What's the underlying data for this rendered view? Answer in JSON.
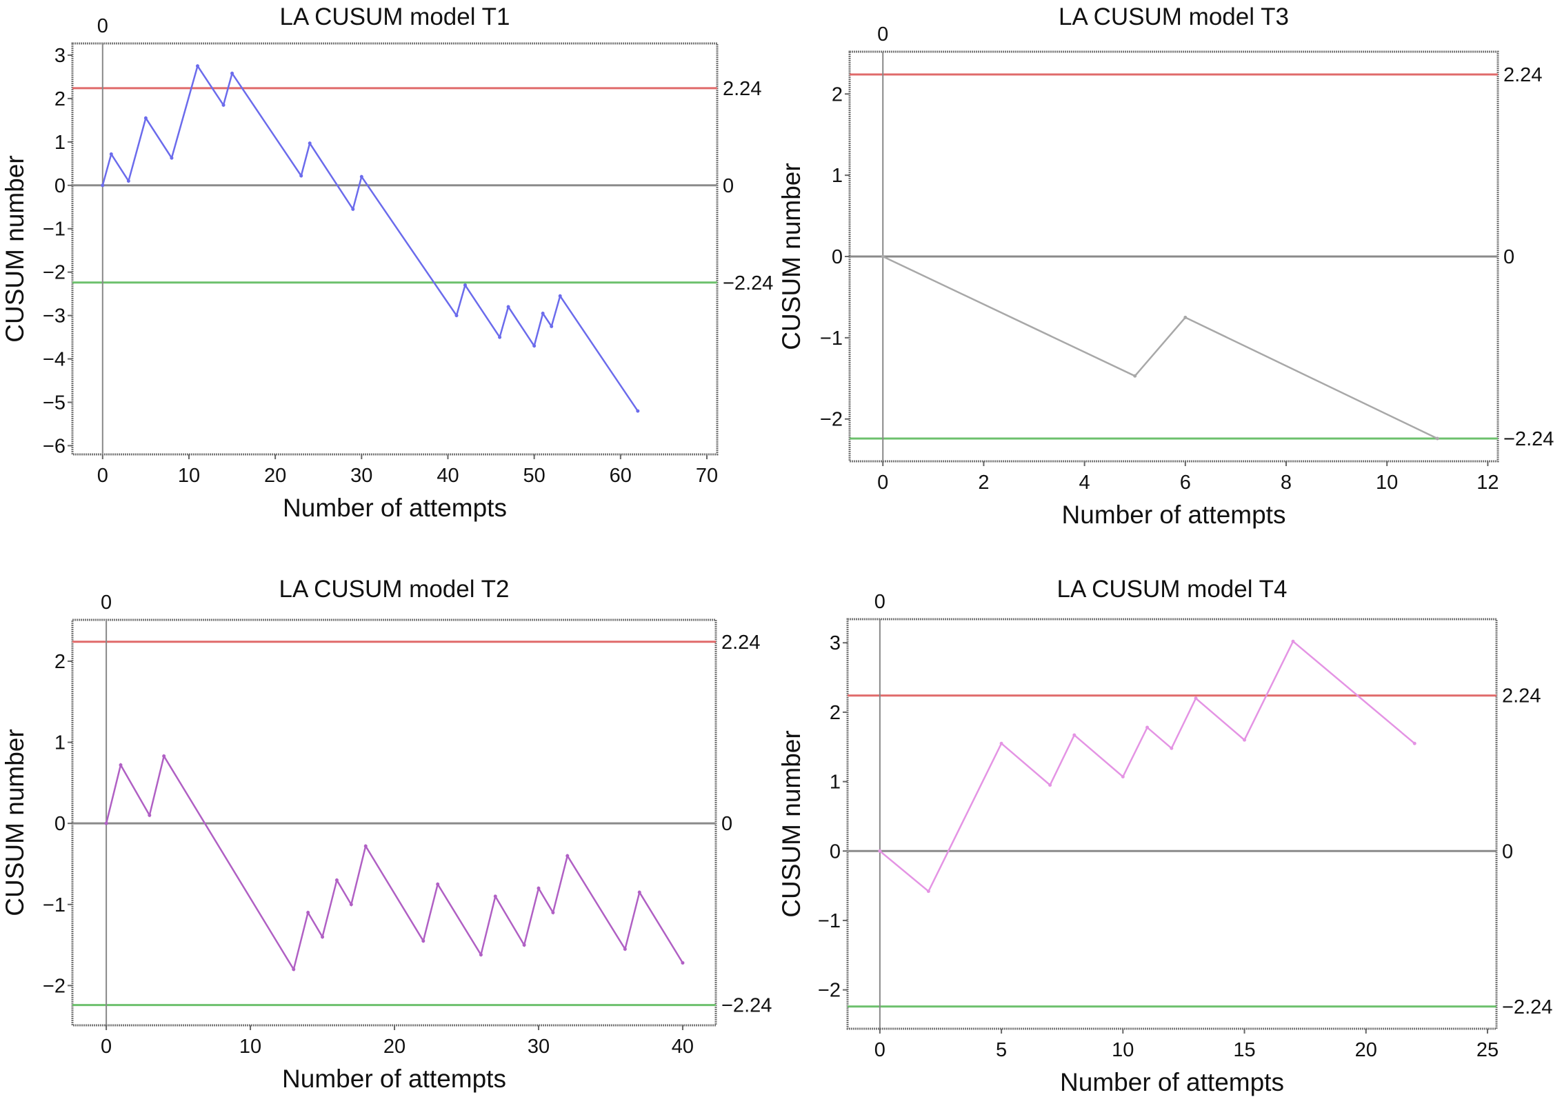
{
  "chart_data": [
    {
      "type": "line",
      "title": "LA CUSUM model T1",
      "xlabel": "Number of attempts",
      "ylabel": "CUSUM number",
      "xlim": [
        -3.5,
        71.2
      ],
      "ylim": [
        -6.2,
        3.27
      ],
      "xticks": [
        0,
        10,
        20,
        30,
        40,
        50,
        60,
        70
      ],
      "yticks": [
        3,
        2,
        1,
        0,
        -1,
        -2,
        -3,
        -4,
        -5,
        -6
      ],
      "top_label": "0",
      "color": "#6b6bec",
      "x": [
        0,
        1,
        3,
        5,
        8,
        11,
        14,
        15,
        23,
        24,
        29,
        30,
        41,
        42,
        46,
        47,
        50,
        51,
        52,
        53,
        62
      ],
      "y": [
        0,
        0.72,
        0.1,
        1.55,
        0.63,
        2.75,
        1.85,
        2.58,
        0.22,
        0.97,
        -0.55,
        0.2,
        -3.0,
        -2.3,
        -3.5,
        -2.8,
        -3.7,
        -2.95,
        -3.25,
        -2.55,
        -5.2
      ],
      "hlines": [
        {
          "value": 2.24,
          "label": "2.24",
          "color": "#e06a6a"
        },
        {
          "value": 0,
          "label": "0",
          "color": "#8a8a8a"
        },
        {
          "value": -2.24,
          "label": "−2.24",
          "color": "#6cc06c"
        }
      ]
    },
    {
      "type": "line",
      "title": "LA CUSUM model T3",
      "xlabel": "Number of attempts",
      "ylabel": "CUSUM number",
      "xlim": [
        -0.66,
        12.2
      ],
      "ylim": [
        -2.52,
        2.52
      ],
      "xticks": [
        0,
        2,
        4,
        6,
        8,
        10,
        12
      ],
      "yticks": [
        2,
        1,
        0,
        -1,
        -2
      ],
      "top_label": "0",
      "color": "#a8a8a8",
      "x": [
        0,
        5,
        6,
        11
      ],
      "y": [
        0,
        -1.47,
        -0.75,
        -2.24
      ],
      "hlines": [
        {
          "value": 2.24,
          "label": "2.24",
          "color": "#e06a6a"
        },
        {
          "value": 0,
          "label": "0",
          "color": "#8a8a8a"
        },
        {
          "value": -2.24,
          "label": "−2.24",
          "color": "#6cc06c"
        }
      ]
    },
    {
      "type": "line",
      "title": "LA CUSUM model T2",
      "xlabel": "Number of attempts",
      "ylabel": "CUSUM number",
      "xlim": [
        -2.35,
        42.3
      ],
      "ylim": [
        -2.49,
        2.51
      ],
      "xticks": [
        0,
        10,
        20,
        30,
        40
      ],
      "yticks": [
        2,
        1,
        0,
        -1,
        -2
      ],
      "top_label": "0",
      "color": "#b060c4",
      "x": [
        0,
        1,
        3,
        4,
        13,
        14,
        15,
        16,
        17,
        18,
        22,
        23,
        26,
        27,
        29,
        30,
        31,
        32,
        36,
        37,
        40
      ],
      "y": [
        0,
        0.72,
        0.1,
        0.83,
        -1.8,
        -1.1,
        -1.4,
        -0.7,
        -1.0,
        -0.28,
        -1.45,
        -0.75,
        -1.62,
        -0.9,
        -1.5,
        -0.8,
        -1.1,
        -0.4,
        -1.55,
        -0.85,
        -1.72
      ],
      "hlines": [
        {
          "value": 2.24,
          "label": "2.24",
          "color": "#e06a6a"
        },
        {
          "value": 0,
          "label": "0",
          "color": "#8a8a8a"
        },
        {
          "value": -2.24,
          "label": "−2.24",
          "color": "#6cc06c"
        }
      ]
    },
    {
      "type": "line",
      "title": "LA CUSUM model T4",
      "xlabel": "Number of attempts",
      "ylabel": "CUSUM number",
      "xlim": [
        -1.33,
        25.37
      ],
      "ylim": [
        -2.56,
        3.34
      ],
      "xticks": [
        0,
        5,
        10,
        15,
        20,
        25
      ],
      "yticks": [
        3,
        2,
        1,
        0,
        -1,
        -2
      ],
      "top_label": "0",
      "color": "#e494e4",
      "x": [
        0,
        2,
        5,
        7,
        8,
        10,
        11,
        12,
        13,
        15,
        17,
        22
      ],
      "y": [
        0,
        -0.58,
        1.55,
        0.95,
        1.67,
        1.07,
        1.78,
        1.48,
        2.2,
        1.6,
        3.02,
        1.55
      ],
      "hlines": [
        {
          "value": 2.24,
          "label": "2.24",
          "color": "#e06a6a"
        },
        {
          "value": 0,
          "label": "0",
          "color": "#8a8a8a"
        },
        {
          "value": -2.24,
          "label": "−2.24",
          "color": "#6cc06c"
        }
      ]
    }
  ]
}
